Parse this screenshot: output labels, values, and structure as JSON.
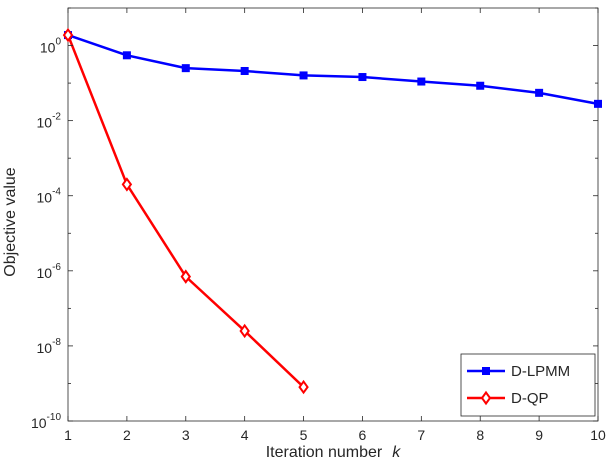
{
  "chart_data": {
    "type": "line",
    "xlabel": "Iteration number",
    "xlabel_var": "k",
    "ylabel": "Objective value",
    "x": [
      1,
      2,
      3,
      4,
      5,
      6,
      7,
      8,
      9,
      10
    ],
    "xlim": [
      1,
      10
    ],
    "ylim": [
      1e-10,
      10
    ],
    "yscale": "log",
    "xticks": [
      "1",
      "2",
      "3",
      "4",
      "5",
      "6",
      "7",
      "8",
      "9",
      "10"
    ],
    "yticks": [
      {
        "base": "10",
        "exp": "0",
        "value": 1
      },
      {
        "base": "10",
        "exp": "-2",
        "value": 0.01
      },
      {
        "base": "10",
        "exp": "-4",
        "value": 0.0001
      },
      {
        "base": "10",
        "exp": "-6",
        "value": 1e-06
      },
      {
        "base": "10",
        "exp": "-8",
        "value": 1e-08
      },
      {
        "base": "10",
        "exp": "-10",
        "value": 1e-10
      }
    ],
    "legend_position": "bottom-right",
    "grid": false,
    "series": [
      {
        "name": "D-LPMM",
        "color": "#0000ff",
        "marker": "square",
        "x": [
          1,
          2,
          3,
          4,
          5,
          6,
          7,
          8,
          9,
          10
        ],
        "values": [
          1.9,
          0.55,
          0.25,
          0.21,
          0.16,
          0.145,
          0.11,
          0.085,
          0.055,
          0.028
        ]
      },
      {
        "name": "D-QP",
        "color": "#ff0000",
        "marker": "diamond",
        "x": [
          1,
          2,
          3,
          4,
          5
        ],
        "values": [
          1.9,
          0.0002,
          7e-07,
          2.5e-08,
          8e-10
        ]
      }
    ]
  }
}
